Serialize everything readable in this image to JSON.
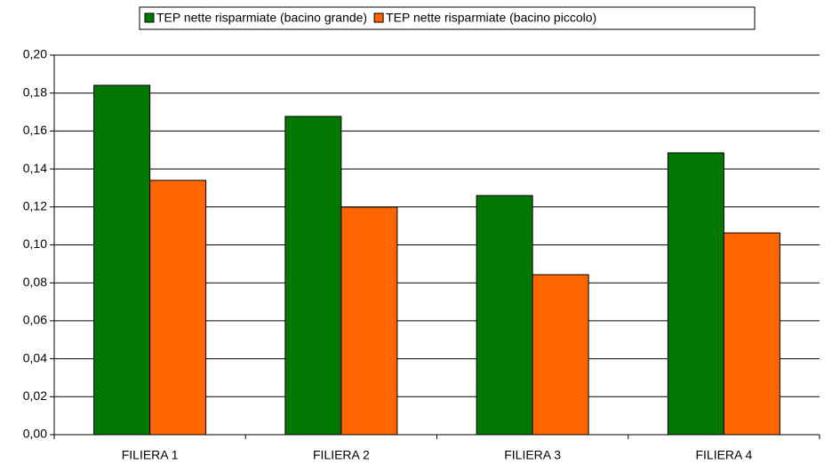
{
  "chart_data": {
    "type": "bar",
    "categories": [
      "FILIERA 1",
      "FILIERA 2",
      "FILIERA 3",
      "FILIERA 4"
    ],
    "series": [
      {
        "name": "TEP nette risparmiate (bacino grande)",
        "color": "#007800",
        "values": [
          0.1841,
          0.1677,
          0.126,
          0.1485
        ]
      },
      {
        "name": "TEP nette risparmiate (bacino piccolo)",
        "color": "#ff6600",
        "values": [
          0.134,
          0.1199,
          0.0843,
          0.1063
        ]
      }
    ],
    "ylim": [
      0,
      0.2
    ],
    "yticks": [
      {
        "value": 0,
        "label": "0,00"
      },
      {
        "value": 0.02,
        "label": "0,02"
      },
      {
        "value": 0.04,
        "label": "0,04"
      },
      {
        "value": 0.06,
        "label": "0,06"
      },
      {
        "value": 0.08,
        "label": "0,08"
      },
      {
        "value": 0.1,
        "label": "0,10"
      },
      {
        "value": 0.12,
        "label": "0,12"
      },
      {
        "value": 0.14,
        "label": "0,14"
      },
      {
        "value": 0.16,
        "label": "0,16"
      },
      {
        "value": 0.18,
        "label": "0,18"
      },
      {
        "value": 0.2,
        "label": "0,20"
      }
    ],
    "grid": true,
    "legend": "top"
  }
}
